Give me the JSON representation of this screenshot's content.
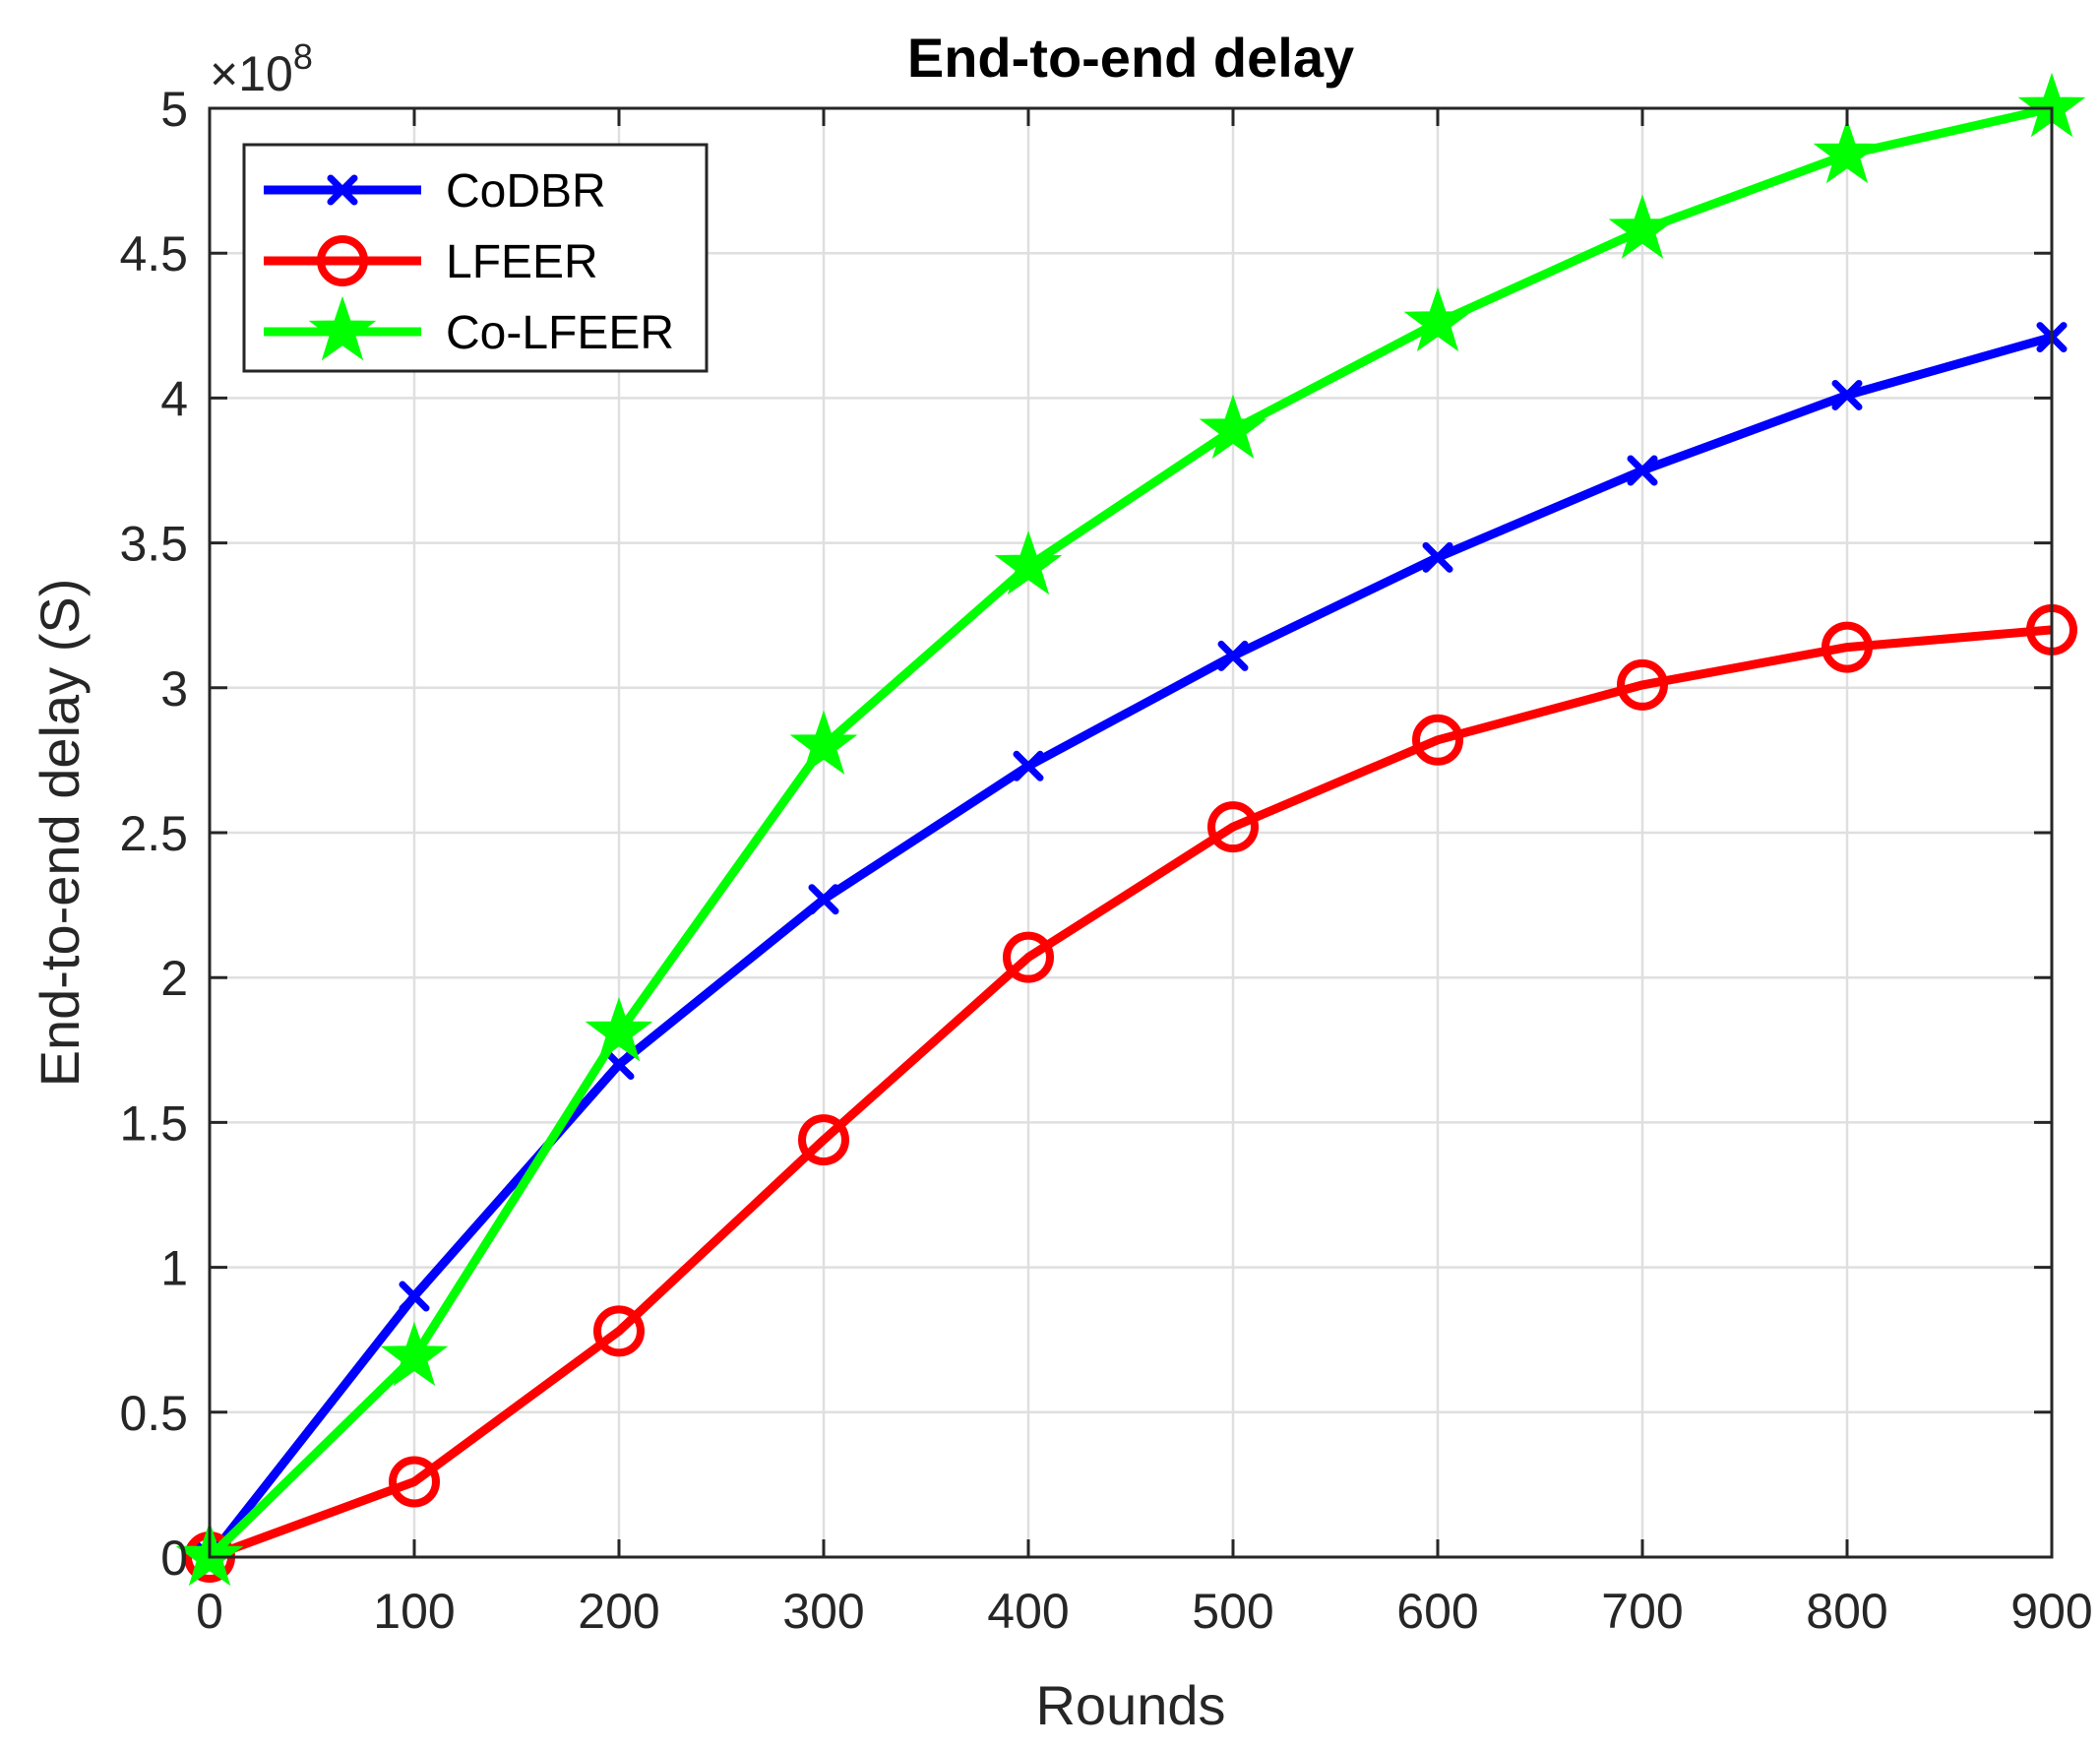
{
  "chart_data": {
    "type": "line",
    "title": "End-to-end delay",
    "xlabel": "Rounds",
    "ylabel": "End-to-end delay (S)",
    "y_multiplier": "×10",
    "y_multiplier_exponent": "8",
    "x": [
      0,
      100,
      200,
      300,
      400,
      500,
      600,
      700,
      800,
      900
    ],
    "xlim": [
      0,
      900
    ],
    "ylim": [
      0,
      5
    ],
    "xticks": [
      0,
      100,
      200,
      300,
      400,
      500,
      600,
      700,
      800,
      900
    ],
    "yticks": [
      0,
      0.5,
      1,
      1.5,
      2,
      2.5,
      3,
      3.5,
      4,
      4.5,
      5
    ],
    "grid": true,
    "legend_position": "top-left",
    "series": [
      {
        "name": "CoDBR",
        "color": "#0000ff",
        "marker": "x",
        "values": [
          0,
          0.9,
          1.7,
          2.27,
          2.73,
          3.11,
          3.45,
          3.75,
          4.01,
          4.21
        ]
      },
      {
        "name": "LFEER",
        "color": "#ff0000",
        "marker": "circle",
        "values": [
          0,
          0.26,
          0.78,
          1.44,
          2.07,
          2.52,
          2.82,
          3.01,
          3.14,
          3.2
        ]
      },
      {
        "name": "Co-LFEER",
        "color": "#00ff00",
        "marker": "star",
        "values": [
          0,
          0.69,
          1.81,
          2.8,
          3.42,
          3.89,
          4.26,
          4.58,
          4.84,
          5.0
        ]
      }
    ]
  }
}
